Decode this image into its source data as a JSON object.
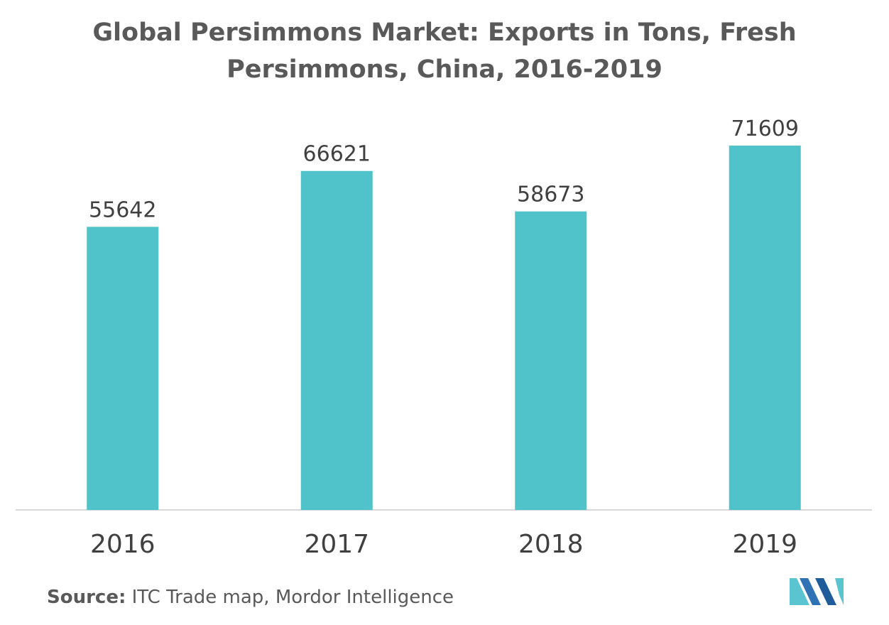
{
  "title_lines": [
    "Global Persimmons Market: Exports in Tons, Fresh",
    "Persimmons, China, 2016-2019"
  ],
  "source": {
    "label": "Source:",
    "text": " ITC Trade map, Mordor Intelligence"
  },
  "logo": {
    "icon": "mordor-intelligence-logo",
    "colors": [
      "#5bc4d1",
      "#2f72b5",
      "#1f5c99"
    ]
  },
  "chart_data": {
    "type": "bar",
    "title": "Global Persimmons Market: Exports in Tons, Fresh Persimmons, China, 2016-2019",
    "categories": [
      "2016",
      "2017",
      "2018",
      "2019"
    ],
    "values": [
      55642,
      66621,
      58673,
      71609
    ],
    "data_labels": [
      "55642",
      "66621",
      "58673",
      "71609"
    ],
    "xlabel": "",
    "ylabel": "",
    "ylim": [
      0,
      71609
    ],
    "grid": false,
    "legend": "none",
    "bar_color": "#4fc3c9",
    "axis_color": "#d9d9d9"
  }
}
